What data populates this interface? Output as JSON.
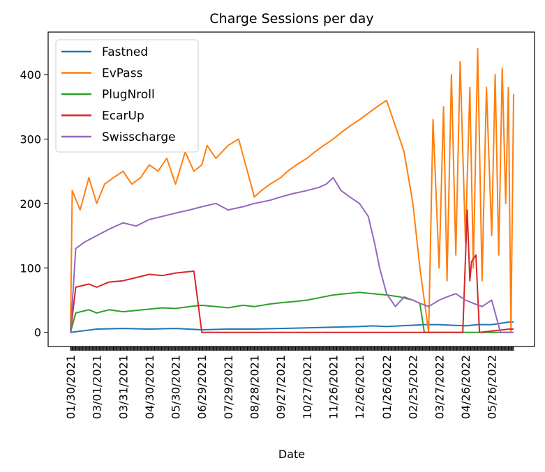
{
  "chart_data": {
    "type": "line",
    "title": "Charge Sessions per day",
    "xlabel": "Date",
    "ylabel": "",
    "ylim": [
      -22,
      466
    ],
    "x_range": [
      "2021-01-30",
      "2022-06-20"
    ],
    "yticks": [
      0,
      100,
      200,
      300,
      400
    ],
    "xticks": [
      "01/30/2021",
      "03/01/2021",
      "03/31/2021",
      "04/30/2021",
      "05/30/2021",
      "06/29/2021",
      "07/29/2021",
      "08/28/2021",
      "09/27/2021",
      "10/27/2021",
      "11/26/2021",
      "12/26/2021",
      "01/26/2022",
      "02/25/2022",
      "03/27/2022",
      "04/26/2022",
      "05/26/2022"
    ],
    "legend_position": "upper-left",
    "grid": false,
    "series": [
      {
        "name": "Fastned",
        "color": "#1f77b4",
        "values": [
          0,
          5,
          6,
          5,
          6,
          4,
          5,
          5,
          6,
          7,
          8,
          9,
          10,
          9,
          10,
          11,
          12,
          12,
          11,
          10,
          12,
          12,
          14,
          15,
          16,
          16
        ],
        "x": [
          "2021-01-30",
          "2021-03-01",
          "2021-03-31",
          "2021-04-30",
          "2021-05-30",
          "2021-06-29",
          "2021-07-29",
          "2021-08-28",
          "2021-09-27",
          "2021-10-27",
          "2021-11-26",
          "2021-12-26",
          "2022-01-10",
          "2022-01-26",
          "2022-02-10",
          "2022-02-25",
          "2022-03-10",
          "2022-03-27",
          "2022-04-10",
          "2022-04-26",
          "2022-05-10",
          "2022-05-26",
          "2022-06-05",
          "2022-06-10",
          "2022-06-15",
          "2022-06-20"
        ]
      },
      {
        "name": "EvPass",
        "color": "#ff7f0e",
        "values": [
          0,
          220,
          190,
          240,
          200,
          230,
          240,
          250,
          230,
          240,
          260,
          250,
          270,
          230,
          280,
          250,
          260,
          290,
          270,
          290,
          300,
          250,
          210,
          220,
          230,
          240,
          250,
          260,
          270,
          280,
          290,
          300,
          310,
          320,
          330,
          340,
          350,
          360,
          320,
          300,
          280,
          240,
          200,
          150,
          100,
          50,
          0,
          330,
          100,
          350,
          80,
          400,
          120,
          420,
          140,
          380,
          100,
          440,
          80,
          380,
          150,
          400,
          120,
          410,
          200,
          380,
          0,
          370
        ],
        "x": [
          "2021-01-30",
          "2021-02-01",
          "2021-02-10",
          "2021-02-20",
          "2021-03-01",
          "2021-03-10",
          "2021-03-20",
          "2021-03-31",
          "2021-04-10",
          "2021-04-20",
          "2021-04-30",
          "2021-05-10",
          "2021-05-20",
          "2021-05-30",
          "2021-06-10",
          "2021-06-20",
          "2021-06-29",
          "2021-07-05",
          "2021-07-15",
          "2021-07-29",
          "2021-08-10",
          "2021-08-20",
          "2021-08-28",
          "2021-09-05",
          "2021-09-15",
          "2021-09-27",
          "2021-10-05",
          "2021-10-15",
          "2021-10-27",
          "2021-11-05",
          "2021-11-15",
          "2021-11-26",
          "2021-12-05",
          "2021-12-15",
          "2021-12-26",
          "2022-01-05",
          "2022-01-15",
          "2022-01-26",
          "2022-02-05",
          "2022-02-10",
          "2022-02-15",
          "2022-02-20",
          "2022-02-25",
          "2022-03-01",
          "2022-03-05",
          "2022-03-10",
          "2022-03-15",
          "2022-03-20",
          "2022-03-27",
          "2022-04-01",
          "2022-04-05",
          "2022-04-10",
          "2022-04-15",
          "2022-04-20",
          "2022-04-26",
          "2022-05-01",
          "2022-05-05",
          "2022-05-10",
          "2022-05-15",
          "2022-05-20",
          "2022-05-26",
          "2022-05-30",
          "2022-06-03",
          "2022-06-07",
          "2022-06-11",
          "2022-06-14",
          "2022-06-17",
          "2022-06-20"
        ]
      },
      {
        "name": "PlugNroll",
        "color": "#2ca02c",
        "values": [
          0,
          30,
          35,
          30,
          35,
          32,
          34,
          36,
          38,
          37,
          40,
          42,
          40,
          38,
          42,
          40,
          44,
          46,
          48,
          50,
          55,
          58,
          60,
          62,
          60,
          58,
          55,
          50,
          45,
          0,
          0,
          0
        ],
        "x": [
          "2021-01-30",
          "2021-02-05",
          "2021-02-20",
          "2021-03-01",
          "2021-03-15",
          "2021-03-31",
          "2021-04-15",
          "2021-04-30",
          "2021-05-15",
          "2021-05-30",
          "2021-06-15",
          "2021-06-29",
          "2021-07-15",
          "2021-07-29",
          "2021-08-15",
          "2021-08-28",
          "2021-09-15",
          "2021-09-27",
          "2021-10-15",
          "2021-10-27",
          "2021-11-15",
          "2021-11-26",
          "2021-12-10",
          "2021-12-26",
          "2022-01-10",
          "2022-01-26",
          "2022-02-10",
          "2022-02-25",
          "2022-03-05",
          "2022-03-10",
          "2022-04-26",
          "2022-06-20"
        ]
      },
      {
        "name": "EcarUp",
        "color": "#d62728",
        "values": [
          0,
          70,
          75,
          70,
          78,
          80,
          85,
          90,
          88,
          92,
          95,
          0,
          0,
          0,
          0,
          0,
          0,
          0,
          0,
          0,
          0,
          0,
          0,
          0,
          0,
          0,
          0,
          190,
          80,
          110,
          120,
          0,
          5,
          5
        ],
        "x": [
          "2021-01-30",
          "2021-02-05",
          "2021-02-20",
          "2021-03-01",
          "2021-03-15",
          "2021-03-31",
          "2021-04-15",
          "2021-04-30",
          "2021-05-15",
          "2021-05-30",
          "2021-06-20",
          "2021-06-29",
          "2021-07-29",
          "2021-08-28",
          "2021-09-27",
          "2021-10-27",
          "2021-11-26",
          "2021-12-26",
          "2022-01-26",
          "2022-02-25",
          "2022-03-27",
          "2022-04-01",
          "2022-04-05",
          "2022-04-10",
          "2022-04-15",
          "2022-04-20",
          "2022-04-23",
          "2022-04-28",
          "2022-05-01",
          "2022-05-03",
          "2022-05-08",
          "2022-05-12",
          "2022-06-15",
          "2022-06-20"
        ]
      },
      {
        "name": "Swisscharge",
        "color": "#9467bd",
        "values": [
          0,
          130,
          140,
          150,
          160,
          170,
          165,
          175,
          180,
          185,
          190,
          195,
          200,
          190,
          195,
          200,
          205,
          210,
          215,
          220,
          225,
          230,
          240,
          220,
          210,
          200,
          180,
          140,
          100,
          60,
          40,
          55,
          50,
          45,
          40,
          50,
          55,
          60,
          50,
          45,
          40,
          50,
          0,
          0,
          0
        ],
        "x": [
          "2021-01-30",
          "2021-02-05",
          "2021-02-15",
          "2021-03-01",
          "2021-03-15",
          "2021-03-31",
          "2021-04-15",
          "2021-04-30",
          "2021-05-15",
          "2021-05-30",
          "2021-06-15",
          "2021-06-29",
          "2021-07-15",
          "2021-07-29",
          "2021-08-15",
          "2021-08-28",
          "2021-09-15",
          "2021-09-27",
          "2021-10-10",
          "2021-10-27",
          "2021-11-10",
          "2021-11-18",
          "2021-11-26",
          "2021-12-05",
          "2021-12-15",
          "2021-12-26",
          "2022-01-05",
          "2022-01-12",
          "2022-01-18",
          "2022-01-26",
          "2022-02-05",
          "2022-02-15",
          "2022-02-25",
          "2022-03-05",
          "2022-03-15",
          "2022-03-27",
          "2022-04-05",
          "2022-04-15",
          "2022-04-26",
          "2022-05-05",
          "2022-05-15",
          "2022-05-26",
          "2022-06-05",
          "2022-06-15",
          "2022-06-20"
        ]
      }
    ]
  }
}
